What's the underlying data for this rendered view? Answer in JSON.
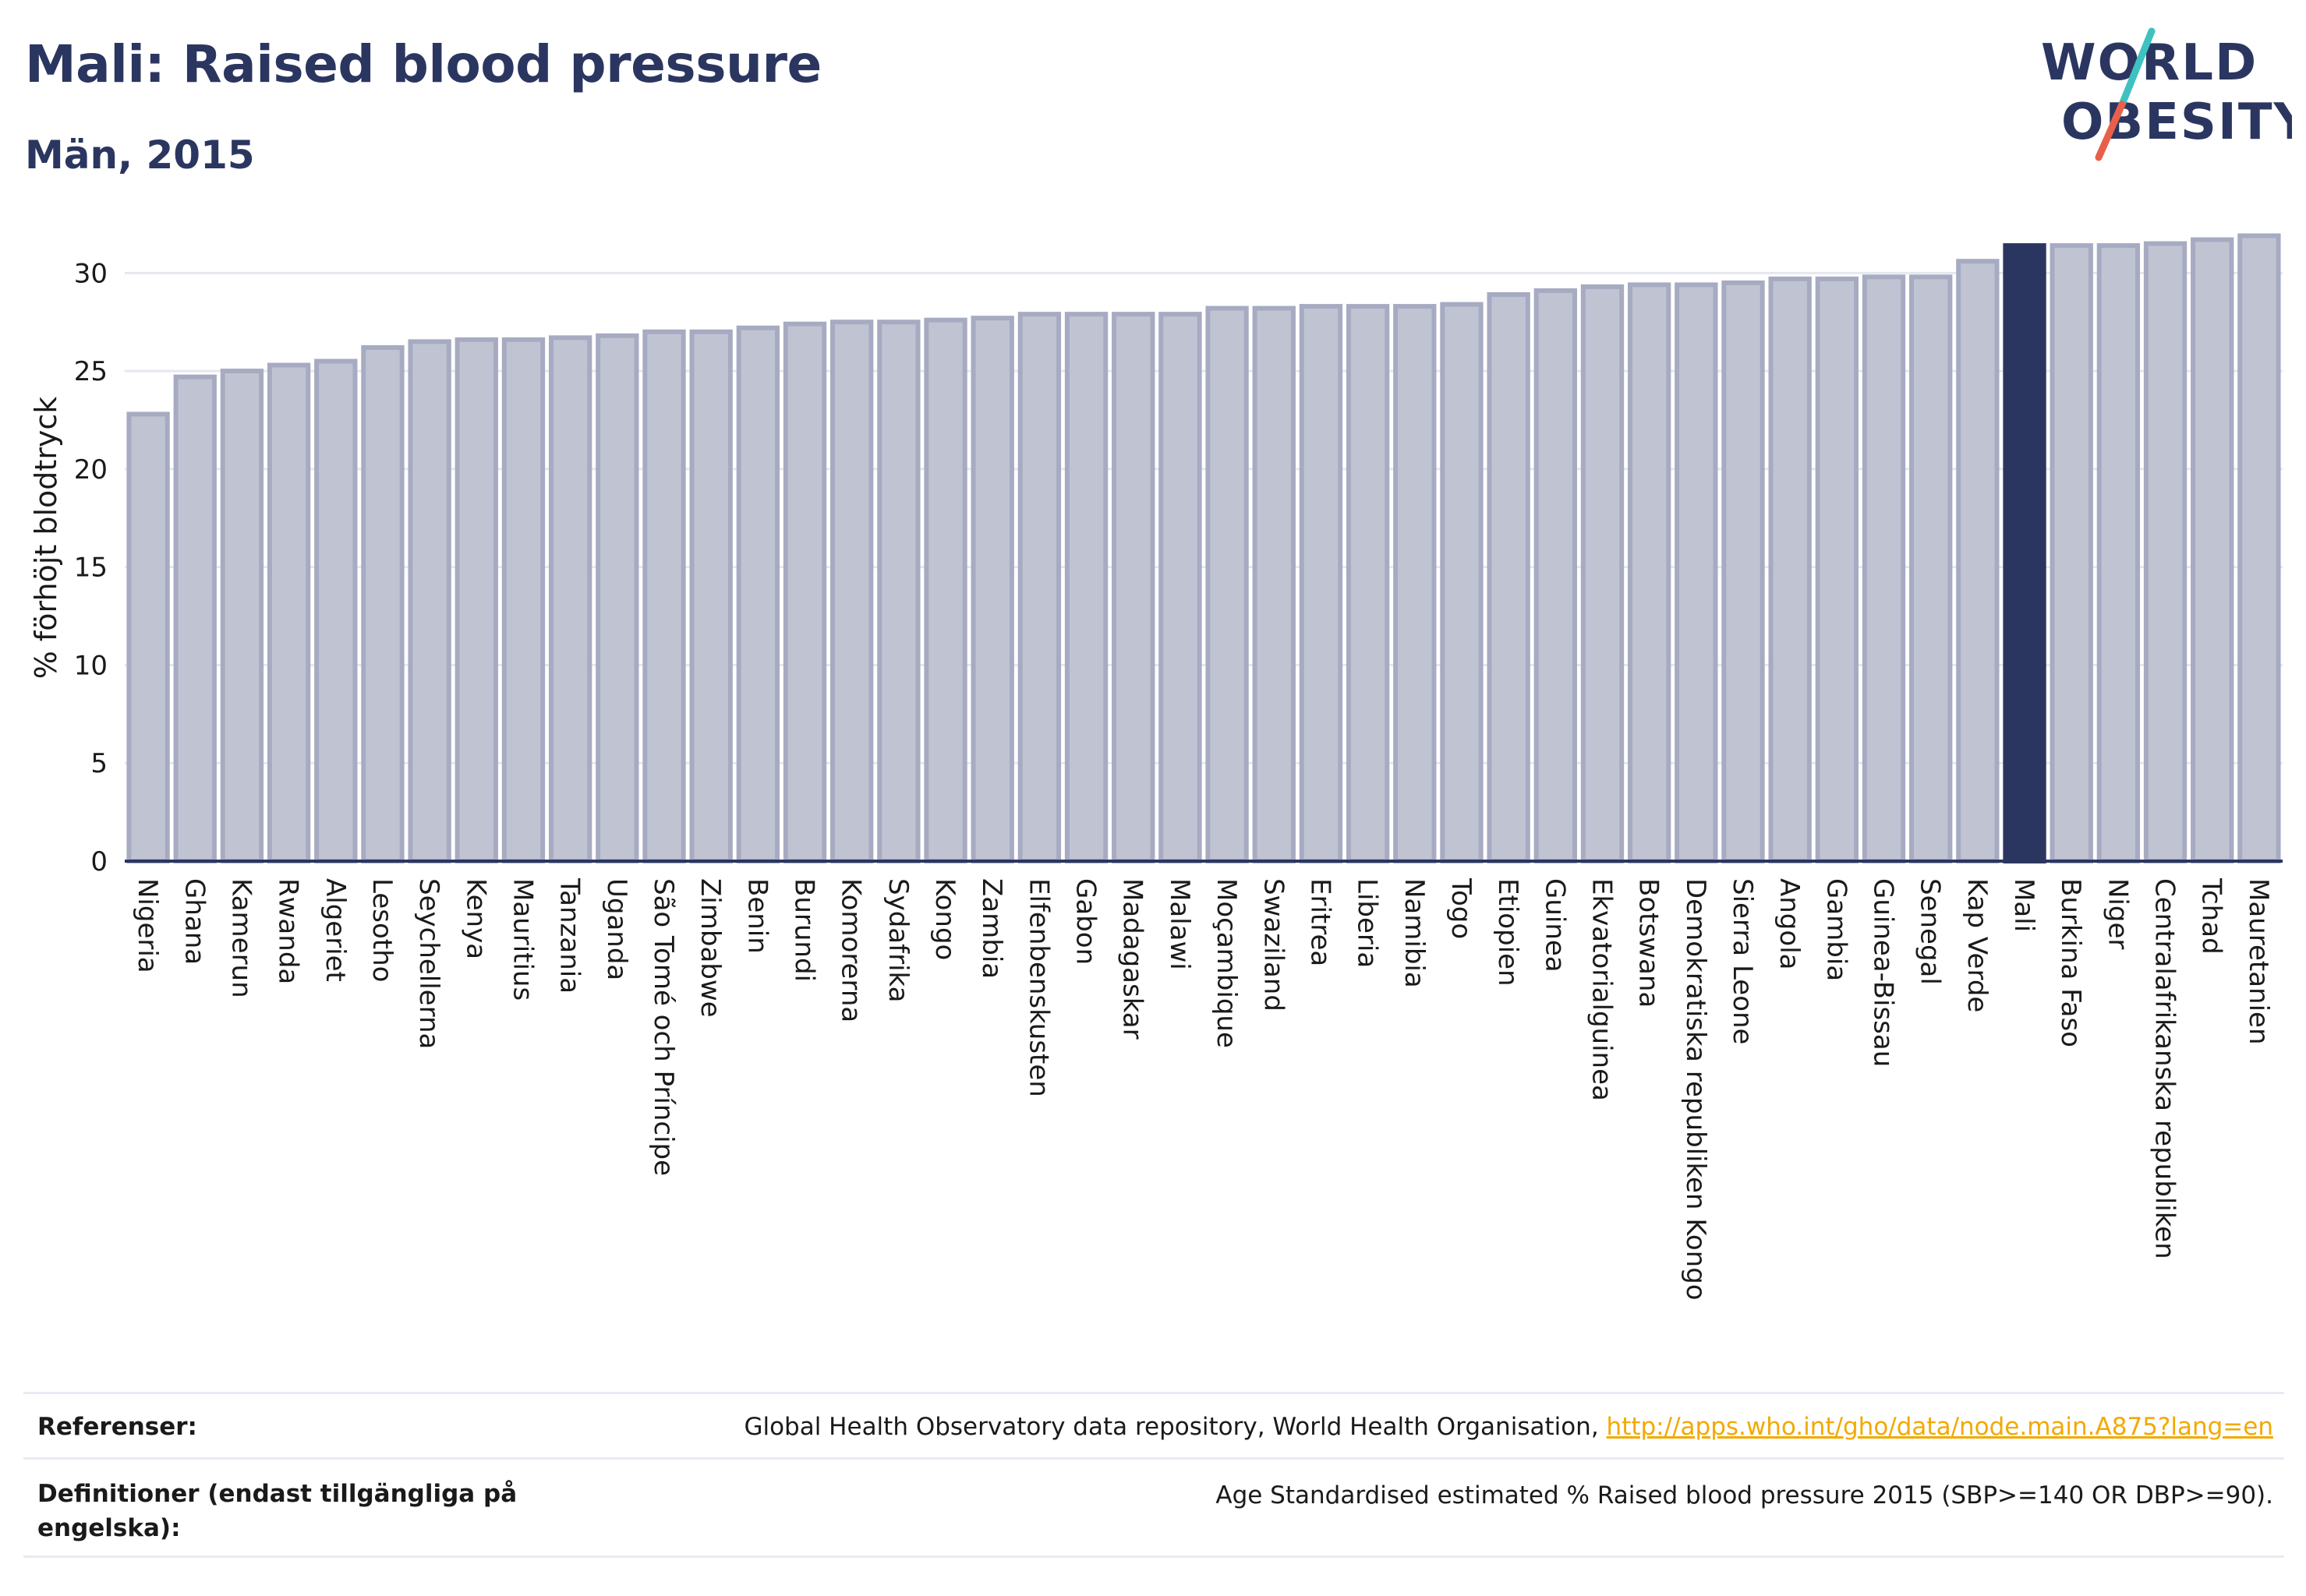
{
  "header": {
    "title": "Mali: Raised blood pressure",
    "subtitle": "Män, 2015"
  },
  "logo": {
    "line1": "WORLD",
    "line2": "OBESITY",
    "colors": {
      "text": "#2b3660",
      "accent_teal": "#3fc1c0",
      "accent_coral": "#e8604c"
    }
  },
  "chart_data": {
    "type": "bar",
    "ylabel": "% förhöjt blodtryck",
    "xlabel": "",
    "ylim": [
      0,
      32
    ],
    "yticks": [
      0,
      5,
      10,
      15,
      20,
      25,
      30
    ],
    "grid": true,
    "highlight": "Mali",
    "colors": {
      "bar": "#c0c4d2",
      "bar_edge": "#a6abc2",
      "highlight": "#2b3660",
      "grid": "#e6e8ef"
    },
    "categories": [
      "Nigeria",
      "Ghana",
      "Kamerun",
      "Rwanda",
      "Algeriet",
      "Lesotho",
      "Seychellerna",
      "Kenya",
      "Mauritius",
      "Tanzania",
      "Uganda",
      "São Tomé och Príncipe",
      "Zimbabwe",
      "Benin",
      "Burundi",
      "Komorerna",
      "Sydafrika",
      "Kongo",
      "Zambia",
      "Elfenbenskusten",
      "Gabon",
      "Madagaskar",
      "Malawi",
      "Moçambique",
      "Swaziland",
      "Eritrea",
      "Liberia",
      "Namibia",
      "Togo",
      "Etiopien",
      "Guinea",
      "Ekvatorialguinea",
      "Botswana",
      "Demokratiska republiken Kongo",
      "Sierra Leone",
      "Angola",
      "Gambia",
      "Guinea-Bissau",
      "Senegal",
      "Kap Verde",
      "Mali",
      "Burkina Faso",
      "Niger",
      "Centralafrikanska republiken",
      "Tchad",
      "Mauretanien"
    ],
    "values": [
      22.8,
      24.7,
      25.0,
      25.3,
      25.5,
      26.2,
      26.5,
      26.6,
      26.6,
      26.7,
      26.8,
      27.0,
      27.0,
      27.2,
      27.4,
      27.5,
      27.5,
      27.6,
      27.7,
      27.9,
      27.9,
      27.9,
      27.9,
      28.2,
      28.2,
      28.3,
      28.3,
      28.3,
      28.4,
      28.9,
      29.1,
      29.3,
      29.4,
      29.4,
      29.5,
      29.7,
      29.7,
      29.8,
      29.8,
      30.6,
      31.4,
      31.4,
      31.4,
      31.5,
      31.7,
      31.9
    ]
  },
  "footer": {
    "references_label": "Referenser:",
    "references_text": "Global Health Observatory data repository, World Health Organisation, ",
    "references_link": "http://apps.who.int/gho/data/node.main.A875?lang=en",
    "definitions_label": "Definitioner (endast tillgängliga på engelska):",
    "definitions_text": "Age Standardised estimated % Raised blood pressure 2015 (SBP>=140 OR DBP>=90)."
  }
}
